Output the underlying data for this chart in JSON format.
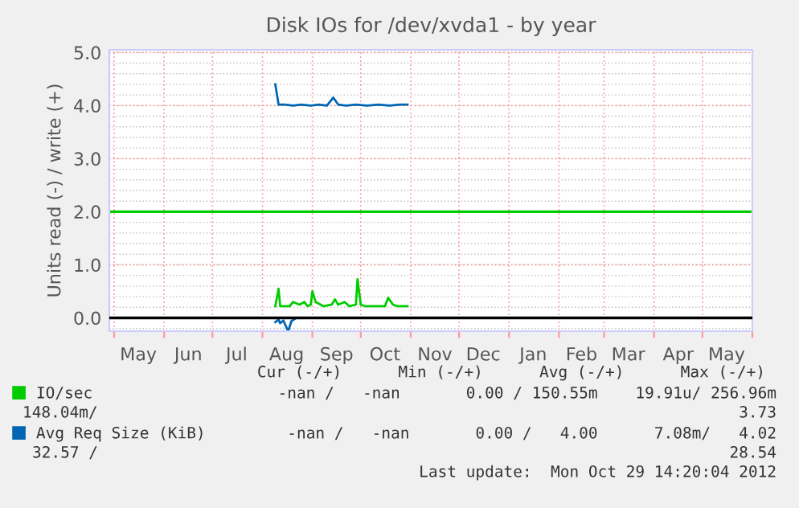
{
  "chart_data": {
    "type": "line",
    "title": "Disk IOs for /dev/xvda1 - by year",
    "ylabel": "Units read (-) / write (+)",
    "xlim": [
      "2012-04-28",
      "2013-06-01"
    ],
    "xticks": [
      {
        "value": "2012-05-01",
        "label": null
      },
      {
        "value": "2012-05-16",
        "label": "May"
      },
      {
        "value": "2012-06-01",
        "label": null
      },
      {
        "value": "2012-06-16",
        "label": "Jun"
      },
      {
        "value": "2012-07-01",
        "label": null
      },
      {
        "value": "2012-07-16",
        "label": "Jul"
      },
      {
        "value": "2012-08-01",
        "label": null
      },
      {
        "value": "2012-08-16",
        "label": "Aug"
      },
      {
        "value": "2012-09-01",
        "label": null
      },
      {
        "value": "2012-09-16",
        "label": "Sep"
      },
      {
        "value": "2012-10-01",
        "label": null
      },
      {
        "value": "2012-10-16",
        "label": "Oct"
      },
      {
        "value": "2012-11-01",
        "label": null
      },
      {
        "value": "2012-11-16",
        "label": "Nov"
      },
      {
        "value": "2012-12-01",
        "label": null
      },
      {
        "value": "2012-12-16",
        "label": "Dec"
      },
      {
        "value": "2013-01-01",
        "label": null
      },
      {
        "value": "2013-01-16",
        "label": "Jan"
      },
      {
        "value": "2013-02-01",
        "label": null
      },
      {
        "value": "2013-02-15",
        "label": "Feb"
      },
      {
        "value": "2013-03-01",
        "label": null
      },
      {
        "value": "2013-03-16",
        "label": "Mar"
      },
      {
        "value": "2013-04-01",
        "label": null
      },
      {
        "value": "2013-04-16",
        "label": "Apr"
      },
      {
        "value": "2013-05-01",
        "label": null
      },
      {
        "value": "2013-05-16",
        "label": "May"
      },
      {
        "value": "2013-06-01",
        "label": null
      }
    ],
    "ylim": [
      -0.25,
      5.05
    ],
    "yticks": [
      {
        "value": 0,
        "label": "0.0"
      },
      {
        "value": 1,
        "label": "1.0"
      },
      {
        "value": 2,
        "label": "2.0"
      },
      {
        "value": 3,
        "label": "3.0"
      },
      {
        "value": 4,
        "label": "4.0"
      },
      {
        "value": 5,
        "label": "5.0"
      }
    ],
    "grid": true,
    "legend": "bottom",
    "marker": "none",
    "line_style": "solid",
    "series": [
      {
        "name": "IO/sec",
        "color": "#00cc00",
        "x": [
          "2012-08-09",
          "2012-08-11",
          "2012-08-12",
          "2012-08-14",
          "2012-08-18",
          "2012-08-20",
          "2012-08-24",
          "2012-08-27",
          "2012-08-29",
          "2012-08-31",
          "2012-09-01",
          "2012-09-03",
          "2012-09-08",
          "2012-09-13",
          "2012-09-15",
          "2012-09-17",
          "2012-09-21",
          "2012-09-24",
          "2012-09-28",
          "2012-09-29",
          "2012-10-01",
          "2012-10-04",
          "2012-10-12",
          "2012-10-16",
          "2012-10-18",
          "2012-10-21",
          "2012-10-24",
          "2012-10-30"
        ],
        "values": [
          0.22,
          0.55,
          0.22,
          0.22,
          0.22,
          0.3,
          0.25,
          0.3,
          0.22,
          0.25,
          0.5,
          0.3,
          0.22,
          0.25,
          0.35,
          0.25,
          0.3,
          0.22,
          0.25,
          0.73,
          0.25,
          0.22,
          0.22,
          0.22,
          0.38,
          0.25,
          0.22,
          0.22
        ]
      },
      {
        "name": "Avg Req Size (KiB)",
        "color": "#0066b3",
        "x": [
          "2012-08-09",
          "2012-08-11",
          "2012-08-15",
          "2012-08-20",
          "2012-08-25",
          "2012-08-31",
          "2012-09-05",
          "2012-09-10",
          "2012-09-14",
          "2012-09-17",
          "2012-09-22",
          "2012-09-28",
          "2012-10-05",
          "2012-10-12",
          "2012-10-19",
          "2012-10-25",
          "2012-10-30"
        ],
        "values": [
          4.4,
          4.02,
          4.02,
          4.0,
          4.02,
          4.0,
          4.02,
          4.0,
          4.15,
          4.02,
          4.0,
          4.02,
          4.0,
          4.02,
          4.0,
          4.02,
          4.02
        ]
      },
      {
        "color": "#0066b3",
        "x": [
          "2012-08-09",
          "2012-08-11",
          "2012-08-12",
          "2012-08-14",
          "2012-08-15",
          "2012-08-17",
          "2012-08-19",
          "2012-08-21"
        ],
        "values": [
          -0.08,
          -0.03,
          -0.1,
          -0.05,
          -0.12,
          -0.25,
          -0.06,
          -0.02
        ]
      }
    ],
    "ref_lines": [
      {
        "axis": "y",
        "value": 2,
        "color": "#00cc00"
      }
    ],
    "annotations": [
      "Cur (-/+)      Min (-/+)      Avg (-/+)      Max (-/+)",
      "-nan /   -nan       0.00 / 150.55m    19.91u/ 256.96m",
      "148.04m/",
      "3.73",
      "-nan /   -nan       0.00 /   4.00      7.08m/   4.02",
      "32.57 /",
      "28.54",
      "Last update:  Mon Oct 29 14:20:04 2012"
    ]
  }
}
